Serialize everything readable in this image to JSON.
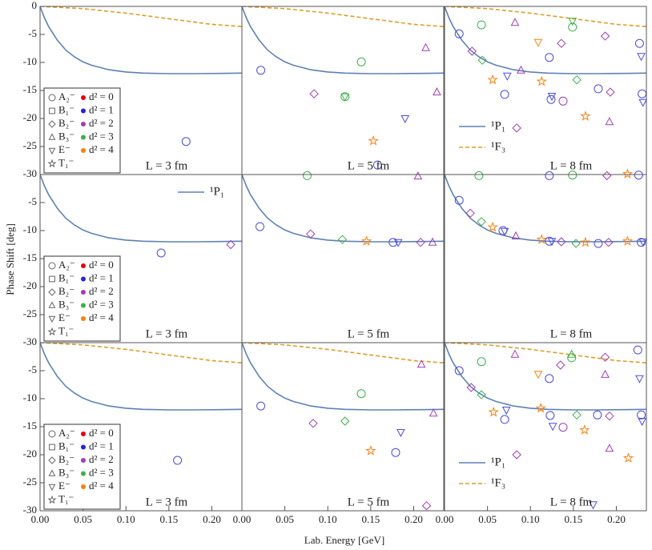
{
  "x_label": "Lab. Energy [GeV]",
  "y_label": "Phase Shift [deg]",
  "curves": [
    {
      "name": "¹P₁",
      "color": "#5e81b5",
      "dash": false,
      "x": [
        0,
        0.005,
        0.01,
        0.02,
        0.03,
        0.04,
        0.05,
        0.06,
        0.08,
        0.1,
        0.12,
        0.15,
        0.18,
        0.21,
        0.235
      ],
      "values": [
        0,
        -2,
        -3.6,
        -6,
        -7.8,
        -9,
        -9.9,
        -10.5,
        -11.3,
        -11.7,
        -11.9,
        -12,
        -12,
        -11.95,
        -11.9
      ]
    },
    {
      "name": "¹F₃",
      "color": "#e19c24",
      "dash": true,
      "x": [
        0,
        0.05,
        0.1,
        0.15,
        0.2,
        0.235
      ],
      "values": [
        0,
        -0.4,
        -1.2,
        -2.2,
        -3.2,
        -3.6
      ]
    }
  ],
  "irreps": [
    {
      "label": "A₂⁻",
      "marker": "circle"
    },
    {
      "label": "B₁⁻",
      "marker": "square"
    },
    {
      "label": "B₂⁻",
      "marker": "diamond"
    },
    {
      "label": "B₃⁻",
      "marker": "triangle-up"
    },
    {
      "label": "E⁻",
      "marker": "triangle-down"
    },
    {
      "label": "T₁⁻",
      "marker": "star"
    }
  ],
  "d2": [
    {
      "label": "d² = 0",
      "color": "#e8000b"
    },
    {
      "label": "d² = 1",
      "color": "#2323d8"
    },
    {
      "label": "d² = 2",
      "color": "#a03cb4"
    },
    {
      "label": "d² = 3",
      "color": "#3cae4a"
    },
    {
      "label": "d² = 4",
      "color": "#ff7f0e"
    }
  ],
  "chart_data": [
    {
      "type": "scatter",
      "annotation": "L = 3 fm",
      "xlim": [
        0,
        0.235
      ],
      "ylim": [
        -30,
        0
      ],
      "yticks": [
        -30,
        -25,
        -20,
        -15,
        -10,
        -5,
        0
      ],
      "curves": [
        0,
        1
      ],
      "symbol_legend": true,
      "series": [
        {
          "marker": "circle",
          "color": "#4a4ae0",
          "x": [
            0.17
          ],
          "values": [
            -24.1
          ]
        }
      ]
    },
    {
      "type": "scatter",
      "annotation": "L = 5 fm",
      "xlim": [
        0,
        0.235
      ],
      "ylim": [
        -30,
        0
      ],
      "curves": [
        0,
        1
      ],
      "series": [
        {
          "marker": "circle",
          "color": "#4a4ae0",
          "x": [
            0.022,
            0.158
          ],
          "values": [
            -11.4,
            -28.3
          ]
        },
        {
          "marker": "diamond",
          "color": "#a03cb4",
          "x": [
            0.084
          ],
          "values": [
            -15.6
          ]
        },
        {
          "marker": "circle",
          "color": "#3cae4a",
          "x": [
            0.139,
            0.12
          ],
          "values": [
            -9.9,
            -16.1
          ]
        },
        {
          "marker": "triangle-down",
          "color": "#3cae4a",
          "x": [
            0.12
          ],
          "values": [
            -16.1
          ]
        },
        {
          "marker": "star",
          "color": "#ff7f0e",
          "x": [
            0.153
          ],
          "values": [
            -24
          ]
        },
        {
          "marker": "triangle-down",
          "color": "#4a4ae0",
          "x": [
            0.19
          ],
          "values": [
            -20
          ]
        },
        {
          "marker": "triangle-up",
          "color": "#a03cb4",
          "x": [
            0.214,
            0.227
          ],
          "values": [
            -7.4,
            -15.3
          ]
        }
      ]
    },
    {
      "type": "scatter",
      "annotation": "L = 8 fm",
      "xlim": [
        0,
        0.235
      ],
      "ylim": [
        -30,
        0
      ],
      "curves": [
        0,
        1
      ],
      "curve_legend": "lower left",
      "series": [
        {
          "marker": "circle",
          "color": "#4a4ae0",
          "x": [
            0.017,
            0.07,
            0.122,
            0.124,
            0.179,
            0.227,
            0.23
          ],
          "values": [
            -4.9,
            -15.7,
            -9.1,
            -16.6,
            -14.7,
            -6.6,
            -15.6
          ]
        },
        {
          "marker": "triangle-down",
          "color": "#4a4ae0",
          "x": [
            0.073,
            0.125,
            0.229,
            0.231
          ],
          "values": [
            -12.4,
            -16,
            -8.9,
            -17.1
          ]
        },
        {
          "marker": "diamond",
          "color": "#a03cb4",
          "x": [
            0.032,
            0.084,
            0.136,
            0.187,
            0.193
          ],
          "values": [
            -8,
            -21.7,
            -6.6,
            -5.3,
            -15.3
          ]
        },
        {
          "marker": "triangle-up",
          "color": "#a03cb4",
          "x": [
            0.082,
            0.089,
            0.192
          ],
          "values": [
            -2.9,
            -11.4,
            -20.6
          ]
        },
        {
          "marker": "circle",
          "color": "#a03cb4",
          "x": [
            0.138
          ],
          "values": [
            -16.9
          ]
        },
        {
          "marker": "circle",
          "color": "#3cae4a",
          "x": [
            0.043,
            0.149
          ],
          "values": [
            -3.3,
            -3.7
          ]
        },
        {
          "marker": "diamond",
          "color": "#3cae4a",
          "x": [
            0.044,
            0.154
          ],
          "values": [
            -9.6,
            -13.1
          ]
        },
        {
          "marker": "triangle-down",
          "color": "#3cae4a",
          "x": [
            0.149
          ],
          "values": [
            -2.6
          ]
        },
        {
          "marker": "star",
          "color": "#ff7f0e",
          "x": [
            0.056,
            0.113,
            0.164,
            0.213
          ],
          "values": [
            -13.1,
            -13.4,
            -19.6,
            -29.9
          ]
        },
        {
          "marker": "triangle-down",
          "color": "#ff7f0e",
          "x": [
            0.109
          ],
          "values": [
            -6.4
          ]
        }
      ]
    },
    {
      "type": "scatter",
      "annotation": "L = 3 fm",
      "xlim": [
        0,
        0.235
      ],
      "ylim": [
        -30,
        0
      ],
      "yticks": [
        -30,
        -25,
        -20,
        -15,
        -10,
        -5
      ],
      "curves": [
        0
      ],
      "symbol_legend": true,
      "curve_legend": "upper right",
      "series": [
        {
          "marker": "circle",
          "color": "#4a4ae0",
          "x": [
            0.141
          ],
          "values": [
            -14
          ]
        },
        {
          "marker": "diamond",
          "color": "#a03cb4",
          "x": [
            0.222
          ],
          "values": [
            -12.5
          ]
        }
      ]
    },
    {
      "type": "scatter",
      "annotation": "L = 5 fm",
      "xlim": [
        0,
        0.235
      ],
      "ylim": [
        -30,
        0
      ],
      "curves": [
        0
      ],
      "series": [
        {
          "marker": "circle",
          "color": "#4a4ae0",
          "x": [
            0.021,
            0.176
          ],
          "values": [
            -9.3,
            -12.1
          ]
        },
        {
          "marker": "triangle-down",
          "color": "#4a4ae0",
          "x": [
            0.182
          ],
          "values": [
            -12.1
          ]
        },
        {
          "marker": "diamond",
          "color": "#a03cb4",
          "x": [
            0.08,
            0.208
          ],
          "values": [
            -10.6,
            -12.1
          ]
        },
        {
          "marker": "triangle-up",
          "color": "#a03cb4",
          "x": [
            0.205,
            0.222
          ],
          "values": [
            -0.3,
            -12.1
          ]
        },
        {
          "marker": "circle",
          "color": "#3cae4a",
          "x": [
            0.076
          ],
          "values": [
            -0.2
          ]
        },
        {
          "marker": "diamond",
          "color": "#3cae4a",
          "x": [
            0.117
          ],
          "values": [
            -11.6
          ]
        },
        {
          "marker": "star",
          "color": "#ff7f0e",
          "x": [
            0.145
          ],
          "values": [
            -11.9
          ]
        }
      ]
    },
    {
      "type": "scatter",
      "annotation": "L = 8 fm",
      "xlim": [
        0,
        0.235
      ],
      "ylim": [
        -30,
        0
      ],
      "curves": [
        0
      ],
      "series": [
        {
          "marker": "circle",
          "color": "#4a4ae0",
          "x": [
            0.017,
            0.068,
            0.122,
            0.179,
            0.229,
            0.122,
            0.226
          ],
          "values": [
            -4.6,
            -10,
            -11.9,
            -12.3,
            -12.1,
            -0.2,
            -0.1
          ]
        },
        {
          "marker": "triangle-down",
          "color": "#4a4ae0",
          "x": [
            0.07,
            0.125,
            0.231
          ],
          "values": [
            -10.1,
            -11.9,
            -12
          ]
        },
        {
          "marker": "diamond",
          "color": "#a03cb4",
          "x": [
            0.03,
            0.136,
            0.191,
            0.189
          ],
          "values": [
            -6.9,
            -12,
            -12.1,
            -0.2
          ]
        },
        {
          "marker": "triangle-up",
          "color": "#a03cb4",
          "x": [
            0.083
          ],
          "values": [
            -11
          ]
        },
        {
          "marker": "circle",
          "color": "#3cae4a",
          "x": [
            0.04,
            0.149
          ],
          "values": [
            -0.2,
            -0.1
          ]
        },
        {
          "marker": "diamond",
          "color": "#3cae4a",
          "x": [
            0.043,
            0.153
          ],
          "values": [
            -8.4,
            -12.3
          ]
        },
        {
          "marker": "star",
          "color": "#ff7f0e",
          "x": [
            0.056,
            0.113,
            0.164,
            0.213
          ],
          "values": [
            -9.4,
            -11.6,
            -12.1,
            -11.9
          ]
        }
      ]
    },
    {
      "type": "scatter",
      "annotation": "L = 3 fm",
      "xlim": [
        0,
        0.235
      ],
      "ylim": [
        -30,
        0
      ],
      "yticks": [
        -30,
        -25,
        -20,
        -15,
        -10,
        -5
      ],
      "xticks": [
        {
          "value": 0,
          "label": "0.00"
        },
        {
          "value": 0.05,
          "label": "0.05"
        },
        {
          "value": 0.1,
          "label": "0.10"
        },
        {
          "value": 0.15,
          "label": "0.15"
        },
        {
          "value": 0.2,
          "label": "0.20"
        }
      ],
      "curves": [
        0,
        1
      ],
      "symbol_legend": true,
      "series": [
        {
          "marker": "circle",
          "color": "#4a4ae0",
          "x": [
            0.16
          ],
          "values": [
            -21
          ]
        }
      ]
    },
    {
      "type": "scatter",
      "annotation": "L = 5 fm",
      "xlim": [
        0,
        0.235
      ],
      "ylim": [
        -30,
        0
      ],
      "xticks": [
        {
          "value": 0,
          "label": "0.00"
        },
        {
          "value": 0.05,
          "label": "0.05"
        },
        {
          "value": 0.1,
          "label": "0.10"
        },
        {
          "value": 0.15,
          "label": "0.15"
        },
        {
          "value": 0.2,
          "label": "0.20"
        }
      ],
      "curves": [
        0,
        1
      ],
      "series": [
        {
          "marker": "circle",
          "color": "#4a4ae0",
          "x": [
            0.022,
            0.179
          ],
          "values": [
            -11.3,
            -19.6
          ]
        },
        {
          "marker": "triangle-down",
          "color": "#4a4ae0",
          "x": [
            0.185
          ],
          "values": [
            -16
          ]
        },
        {
          "marker": "diamond",
          "color": "#a03cb4",
          "x": [
            0.083,
            0.215
          ],
          "values": [
            -14.4,
            -29.1
          ]
        },
        {
          "marker": "triangle-up",
          "color": "#a03cb4",
          "x": [
            0.209,
            0.223
          ],
          "values": [
            -3.9,
            -12.6
          ]
        },
        {
          "marker": "circle",
          "color": "#3cae4a",
          "x": [
            0.139
          ],
          "values": [
            -9.1
          ]
        },
        {
          "marker": "diamond",
          "color": "#3cae4a",
          "x": [
            0.12
          ],
          "values": [
            -14
          ]
        },
        {
          "marker": "star",
          "color": "#ff7f0e",
          "x": [
            0.15
          ],
          "values": [
            -19.3
          ]
        }
      ]
    },
    {
      "type": "scatter",
      "annotation": "L = 8 fm",
      "xlim": [
        0,
        0.235
      ],
      "ylim": [
        -30,
        0
      ],
      "xticks": [
        {
          "value": 0,
          "label": "0.00"
        },
        {
          "value": 0.05,
          "label": "0.05"
        },
        {
          "value": 0.1,
          "label": "0.10"
        },
        {
          "value": 0.15,
          "label": "0.15"
        },
        {
          "value": 0.2,
          "label": "0.20"
        }
      ],
      "curves": [
        0,
        1
      ],
      "curve_legend": "lower left",
      "series": [
        {
          "marker": "circle",
          "color": "#4a4ae0",
          "x": [
            0.017,
            0.07,
            0.122,
            0.123,
            0.178,
            0.225,
            0.229
          ],
          "values": [
            -5,
            -13.7,
            -6.4,
            -13,
            -12.9,
            -1.3,
            -12.9
          ]
        },
        {
          "marker": "triangle-down",
          "color": "#4a4ae0",
          "x": [
            0.072,
            0.126,
            0.227,
            0.23,
            0.173
          ],
          "values": [
            -12,
            -14.9,
            -6.4,
            -14,
            -28.9
          ]
        },
        {
          "marker": "diamond",
          "color": "#a03cb4",
          "x": [
            0.031,
            0.084,
            0.135,
            0.187,
            0.192
          ],
          "values": [
            -8,
            -20,
            -4,
            -2.6,
            -13.1
          ]
        },
        {
          "marker": "triangle-up",
          "color": "#a03cb4",
          "x": [
            0.082,
            0.187,
            0.192
          ],
          "values": [
            -2.1,
            -5.7,
            -18.9
          ]
        },
        {
          "marker": "circle",
          "color": "#a03cb4",
          "x": [
            0.138
          ],
          "values": [
            -15.1
          ]
        },
        {
          "marker": "circle",
          "color": "#3cae4a",
          "x": [
            0.043,
            0.148
          ],
          "values": [
            -3.4,
            -2.7
          ]
        },
        {
          "marker": "diamond",
          "color": "#3cae4a",
          "x": [
            0.043,
            0.154
          ],
          "values": [
            -9.3,
            -12.9
          ]
        },
        {
          "marker": "triangle-up",
          "color": "#3cae4a",
          "x": [
            0.148
          ],
          "values": [
            -2.1
          ]
        },
        {
          "marker": "star",
          "color": "#ff7f0e",
          "x": [
            0.057,
            0.112,
            0.163,
            0.214
          ],
          "values": [
            -12.4,
            -11.7,
            -15.6,
            -20.6
          ]
        },
        {
          "marker": "triangle-down",
          "color": "#ff7f0e",
          "x": [
            0.109
          ],
          "values": [
            -5.6
          ]
        }
      ]
    }
  ]
}
